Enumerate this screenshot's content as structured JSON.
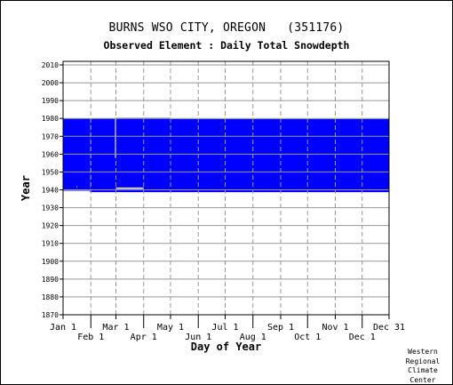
{
  "header": {
    "station": "BURNS WSO CITY, OREGON",
    "station_id": "(351176)",
    "subtitle": "Observed Element : Daily Total Snowdepth"
  },
  "credit": [
    "Western",
    "Regional",
    "Climate",
    "Center"
  ],
  "colors": {
    "data_fill": "#0000ff",
    "grid": "#999999",
    "axis": "#000000",
    "background": "#ffffff"
  },
  "chart_data": {
    "type": "heatmap",
    "title": "BURNS WSO CITY, OREGON   (351176)",
    "subtitle": "Observed Element : Daily Total Snowdepth",
    "xlabel": "Day of Year",
    "ylabel": "Year",
    "xlim": [
      1,
      365
    ],
    "ylim": [
      1870,
      2012
    ],
    "x_ticks": [
      {
        "label": "Jan 1",
        "day": 1,
        "row": 0
      },
      {
        "label": "Feb 1",
        "day": 32,
        "row": 1
      },
      {
        "label": "Mar 1",
        "day": 60,
        "row": 0
      },
      {
        "label": "Apr 1",
        "day": 91,
        "row": 1
      },
      {
        "label": "May 1",
        "day": 121,
        "row": 0
      },
      {
        "label": "Jun 1",
        "day": 152,
        "row": 1
      },
      {
        "label": "Jul 1",
        "day": 182,
        "row": 0
      },
      {
        "label": "Aug 1",
        "day": 213,
        "row": 1
      },
      {
        "label": "Sep 1",
        "day": 244,
        "row": 0
      },
      {
        "label": "Oct 1",
        "day": 274,
        "row": 1
      },
      {
        "label": "Nov 1",
        "day": 305,
        "row": 0
      },
      {
        "label": "Dec 1",
        "day": 335,
        "row": 1
      },
      {
        "label": "Dec 31",
        "day": 365,
        "row": 0
      }
    ],
    "y_ticks": [
      1870,
      1880,
      1890,
      1900,
      1910,
      1920,
      1930,
      1940,
      1950,
      1960,
      1970,
      1980,
      1990,
      2000,
      2010
    ],
    "grid": true,
    "legend": "none",
    "data_coverage": [
      {
        "day_start": 1,
        "day_end": 31,
        "year_start": 1939.5,
        "year_end": 1980
      },
      {
        "day_start": 31,
        "day_end": 60,
        "year_start": 1938.7,
        "year_end": 1980
      },
      {
        "day_start": 60,
        "day_end": 121,
        "year_start": 1938.7,
        "year_end": 1980.3
      },
      {
        "day_start": 121,
        "day_end": 365,
        "year_start": 1938.7,
        "year_end": 1979.7
      }
    ],
    "missing_gaps": [
      {
        "day_start": 59,
        "day_end": 60,
        "year_start": 1958,
        "year_end": 1980
      },
      {
        "day_start": 60,
        "day_end": 91,
        "year_start": 1940.5,
        "year_end": 1941.3
      },
      {
        "day_start": 16,
        "day_end": 17,
        "year_start": 1941.5,
        "year_end": 1942
      }
    ]
  }
}
